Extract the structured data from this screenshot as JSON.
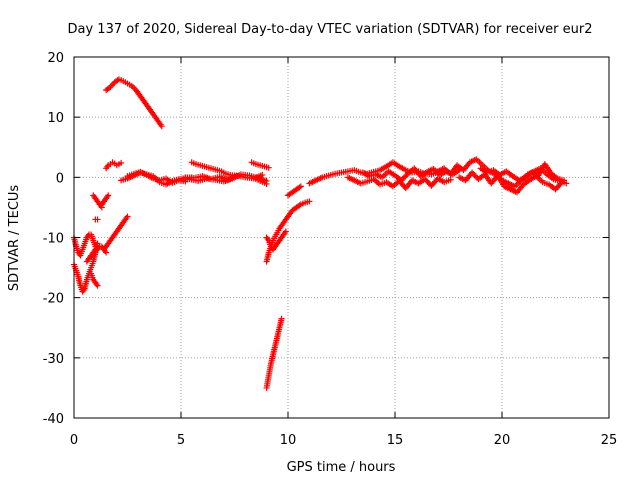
{
  "chart_data": {
    "type": "scatter",
    "title": "Day 137 of 2020, Sidereal Day-to-day VTEC variation (SDTVAR) for receiver eur2",
    "xlabel": "GPS time / hours",
    "ylabel": "SDTVAR / TECUs",
    "xlim": [
      0,
      25
    ],
    "ylim": [
      -40,
      20
    ],
    "xticks": [
      0,
      5,
      10,
      15,
      20,
      25
    ],
    "yticks": [
      -40,
      -30,
      -20,
      -10,
      0,
      10,
      20
    ],
    "xtick_labels": [
      "0",
      "5",
      "10",
      "15",
      "20",
      "25"
    ],
    "ytick_labels": [
      "-40",
      "-30",
      "-20",
      "-10",
      "0",
      "10",
      "20"
    ],
    "grid": true,
    "marker": "+",
    "color": "#ff0000",
    "series": [
      {
        "name": "SDTVAR",
        "segments": [
          {
            "x": [
              0.0,
              0.1,
              0.2,
              0.3,
              0.4,
              0.5,
              0.6,
              0.7,
              0.8,
              0.9,
              1.0,
              1.1
            ],
            "y": [
              -14.5,
              -15.5,
              -16.5,
              -18.0,
              -19.0,
              -18.5,
              -17.0,
              -16.0,
              -15.0,
              -14.0,
              -12.5,
              -11.0
            ]
          },
          {
            "x": [
              0.0,
              0.1,
              0.2,
              0.3,
              0.4,
              0.5,
              0.6,
              0.7,
              0.8,
              0.9,
              1.0
            ],
            "y": [
              -10.0,
              -11.5,
              -12.5,
              -13.0,
              -12.0,
              -11.0,
              -10.0,
              -9.5,
              -9.5,
              -10.5,
              -11.5
            ]
          },
          {
            "x": [
              0.6,
              0.7,
              0.8,
              0.9,
              1.0,
              1.1,
              1.2,
              1.3,
              1.4,
              1.5
            ],
            "y": [
              -14.0,
              -13.5,
              -13.0,
              -12.5,
              -12.0,
              -12.0,
              -11.5,
              -11.5,
              -12.0,
              -12.5
            ]
          },
          {
            "x": [
              0.8,
              0.9,
              1.0,
              1.1
            ],
            "y": [
              -16.0,
              -17.0,
              -17.5,
              -18.0
            ]
          },
          {
            "x": [
              0.9,
              1.0,
              1.1,
              1.2,
              1.3
            ],
            "y": [
              -3.0,
              -3.5,
              -4.0,
              -4.5,
              -5.0
            ]
          },
          {
            "x": [
              1.0,
              1.1
            ],
            "y": [
              -7.0,
              -7.0
            ]
          },
          {
            "x": [
              1.3,
              1.4,
              1.5,
              1.6
            ],
            "y": [
              -4.5,
              -4.0,
              -3.5,
              -3.0
            ]
          },
          {
            "x": [
              1.4,
              1.5,
              1.6,
              1.7,
              1.8,
              1.9,
              2.0,
              2.1,
              2.2,
              2.3,
              2.4,
              2.5
            ],
            "y": [
              -12.0,
              -11.5,
              -11.0,
              -10.5,
              -10.0,
              -9.5,
              -9.0,
              -8.5,
              -8.0,
              -7.5,
              -7.0,
              -6.5
            ]
          },
          {
            "x": [
              1.5,
              1.6,
              1.7,
              1.8,
              1.9,
              2.0,
              2.1,
              2.2
            ],
            "y": [
              1.5,
              2.0,
              2.2,
              2.5,
              2.3,
              2.0,
              2.2,
              2.4
            ]
          },
          {
            "x": [
              1.5,
              1.7,
              1.9,
              2.1,
              2.3,
              2.5,
              2.7,
              2.9,
              3.1,
              3.3,
              3.5,
              3.7,
              3.9,
              4.1
            ],
            "y": [
              14.5,
              15.0,
              15.8,
              16.3,
              16.0,
              15.6,
              15.2,
              14.5,
              13.5,
              12.5,
              11.5,
              10.5,
              9.5,
              8.5
            ]
          },
          {
            "x": [
              2.2,
              2.5,
              2.8,
              3.1,
              3.4,
              3.7,
              4.0,
              4.3,
              4.6,
              4.9,
              5.2,
              5.5
            ],
            "y": [
              -0.5,
              -0.2,
              0.3,
              0.8,
              0.5,
              0.2,
              -0.8,
              -1.2,
              -0.6,
              -0.3,
              -0.1,
              0.0
            ]
          },
          {
            "x": [
              2.5,
              2.8,
              3.1,
              3.4,
              3.7,
              4.0,
              4.3,
              4.6,
              4.9,
              5.2
            ],
            "y": [
              0.2,
              0.6,
              0.9,
              0.4,
              -0.2,
              -0.5,
              -0.2,
              -0.9,
              -0.5,
              -0.7
            ]
          },
          {
            "x": [
              5.5,
              5.7,
              5.9,
              6.1,
              6.3,
              6.5,
              6.7,
              6.9,
              7.1,
              7.3,
              7.5
            ],
            "y": [
              2.5,
              2.2,
              2.0,
              1.8,
              1.6,
              1.4,
              1.2,
              1.0,
              0.6,
              0.4,
              0.3
            ]
          },
          {
            "x": [
              5.0,
              5.4,
              5.8,
              6.2,
              6.6,
              7.0,
              7.4,
              7.8,
              8.2,
              8.6,
              9.0
            ],
            "y": [
              -0.5,
              -0.3,
              -0.6,
              -0.2,
              -0.4,
              -0.7,
              -0.2,
              0.5,
              0.3,
              -0.1,
              -0.6
            ]
          },
          {
            "x": [
              5.2,
              5.6,
              6.0,
              6.4,
              6.8,
              7.2,
              7.6,
              8.0,
              8.4,
              8.8
            ],
            "y": [
              0.0,
              -0.1,
              0.2,
              -0.3,
              0.1,
              -0.4,
              0.3,
              0.0,
              -0.2,
              0.4
            ]
          },
          {
            "x": [
              8.3,
              8.5,
              8.7,
              8.9,
              9.1
            ],
            "y": [
              2.5,
              2.2,
              2.0,
              1.8,
              1.6
            ]
          },
          {
            "x": [
              8.5,
              8.7,
              8.9,
              9.0
            ],
            "y": [
              -0.3,
              -0.6,
              -0.9,
              -1.1
            ]
          },
          {
            "x": [
              9.0,
              9.1,
              9.2,
              9.3,
              9.4,
              9.5,
              9.6,
              9.7
            ],
            "y": [
              -35.0,
              -33.0,
              -31.0,
              -29.5,
              -28.0,
              -26.5,
              -25.0,
              -23.5
            ]
          },
          {
            "x": [
              9.0,
              9.1,
              9.2,
              9.3,
              9.4,
              9.5,
              9.6,
              9.8,
              10.0,
              10.2,
              10.4,
              10.6,
              10.8,
              11.0
            ],
            "y": [
              -14.0,
              -12.5,
              -11.5,
              -10.5,
              -9.8,
              -9.2,
              -8.5,
              -7.5,
              -6.5,
              -5.5,
              -5.0,
              -4.5,
              -4.2,
              -4.0
            ]
          },
          {
            "x": [
              9.0,
              9.1,
              9.2,
              9.3,
              9.5,
              9.7,
              9.9
            ],
            "y": [
              -10.0,
              -10.5,
              -11.5,
              -12.0,
              -11.0,
              -10.0,
              -9.0
            ]
          },
          {
            "x": [
              10.0,
              10.2,
              10.4,
              10.6
            ],
            "y": [
              -3.0,
              -2.5,
              -2.0,
              -1.5
            ]
          },
          {
            "x": [
              11.0,
              11.3,
              11.6,
              11.9,
              12.2,
              12.5,
              12.8,
              13.1,
              13.4,
              13.7,
              14.0,
              14.3,
              14.6,
              14.9,
              15.2,
              15.5,
              15.8,
              16.1,
              16.4,
              16.7,
              17.0
            ],
            "y": [
              -1.0,
              -0.5,
              0.0,
              0.3,
              0.6,
              0.8,
              1.0,
              1.2,
              0.8,
              0.6,
              0.9,
              1.2,
              1.8,
              2.5,
              1.8,
              1.2,
              0.8,
              1.0,
              0.6,
              0.5,
              0.8
            ]
          },
          {
            "x": [
              12.8,
              13.1,
              13.4,
              13.7,
              14.0,
              14.3,
              14.6,
              14.9,
              15.2,
              15.5,
              15.8,
              16.1,
              16.4,
              16.7,
              17.0,
              17.3,
              17.6
            ],
            "y": [
              0.0,
              -0.5,
              -1.0,
              -0.7,
              -0.3,
              -1.2,
              -0.8,
              -1.5,
              -0.6,
              -1.8,
              -0.5,
              -1.0,
              -0.3,
              -1.4,
              -0.2,
              -0.8,
              -0.4
            ]
          },
          {
            "x": [
              13.5,
              13.8,
              14.1,
              14.4,
              14.7,
              15.0,
              15.3,
              15.6,
              15.9,
              16.2,
              16.5,
              16.8,
              17.1,
              17.4,
              17.7,
              18.0
            ],
            "y": [
              0.8,
              0.2,
              0.5,
              0.0,
              1.0,
              0.3,
              -0.5,
              0.6,
              1.5,
              0.2,
              0.9,
              1.4,
              0.4,
              1.0,
              0.5,
              1.2
            ]
          },
          {
            "x": [
              17.0,
              17.3,
              17.6,
              17.9,
              18.2,
              18.5,
              18.8,
              19.1,
              19.4,
              19.7,
              20.0,
              20.3,
              20.6,
              20.9,
              21.2,
              21.5,
              21.8,
              22.1,
              22.4,
              22.7,
              23.0
            ],
            "y": [
              1.0,
              1.5,
              0.5,
              2.0,
              1.2,
              2.5,
              3.0,
              2.0,
              1.0,
              0.5,
              -0.5,
              -1.0,
              -1.5,
              -0.5,
              0.5,
              1.0,
              1.5,
              0.5,
              -0.3,
              -0.6,
              -1.0
            ]
          },
          {
            "x": [
              18.0,
              18.3,
              18.6,
              18.9,
              19.2,
              19.5,
              19.8,
              20.1,
              20.4,
              20.7,
              21.0,
              21.3,
              21.6,
              21.9,
              22.2,
              22.5,
              22.8
            ],
            "y": [
              0.0,
              -0.5,
              0.8,
              -0.3,
              0.5,
              -1.0,
              0.3,
              -1.5,
              -2.0,
              -2.5,
              -1.2,
              -0.4,
              0.2,
              -0.8,
              -1.2,
              -2.0,
              -0.8
            ]
          },
          {
            "x": [
              19.0,
              19.3,
              19.6,
              19.9,
              20.2,
              20.5,
              20.8,
              21.1,
              21.4,
              21.7,
              22.0,
              22.3,
              22.6,
              22.9
            ],
            "y": [
              1.5,
              0.8,
              1.2,
              0.4,
              1.0,
              0.2,
              -0.5,
              0.0,
              0.8,
              0.3,
              2.2,
              0.6,
              -0.2,
              -0.5
            ]
          }
        ]
      }
    ]
  }
}
